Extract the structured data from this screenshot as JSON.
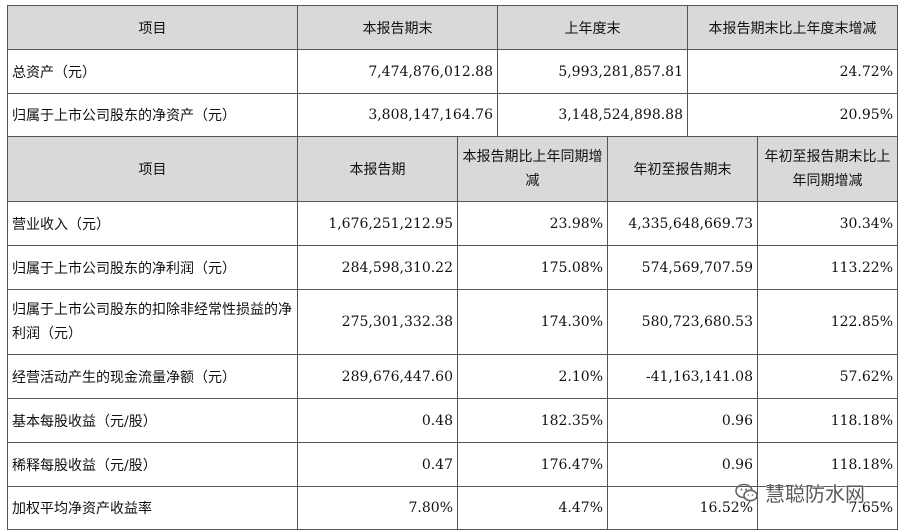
{
  "table1": {
    "headers": [
      "项目",
      "本报告期末",
      "上年度末",
      "本报告期末比上年度末增减"
    ],
    "rows": [
      {
        "label": "总资产（元）",
        "current": "7,474,876,012.88",
        "prior": "5,993,281,857.81",
        "change": "24.72%"
      },
      {
        "label": "归属于上市公司股东的净资产（元）",
        "current": "3,808,147,164.76",
        "prior": "3,148,524,898.88",
        "change": "20.95%"
      }
    ]
  },
  "table2": {
    "headers": [
      "项目",
      "本报告期",
      "本报告期比上年同期增减",
      "年初至报告期末",
      "年初至报告期末比上年同期增减"
    ],
    "rows": [
      {
        "label": "营业收入（元）",
        "period": "1,676,251,212.95",
        "period_change": "23.98%",
        "ytd": "4,335,648,669.73",
        "ytd_change": "30.34%"
      },
      {
        "label": "归属于上市公司股东的净利润（元）",
        "period": "284,598,310.22",
        "period_change": "175.08%",
        "ytd": "574,569,707.59",
        "ytd_change": "113.22%"
      },
      {
        "label": "归属于上市公司股东的扣除非经常性损益的净利润（元）",
        "period": "275,301,332.38",
        "period_change": "174.30%",
        "ytd": "580,723,680.53",
        "ytd_change": "122.85%"
      },
      {
        "label": "经营活动产生的现金流量净额（元）",
        "period": "289,676,447.60",
        "period_change": "2.10%",
        "ytd": "-41,163,141.08",
        "ytd_change": "57.62%"
      },
      {
        "label": "基本每股收益（元/股）",
        "period": "0.48",
        "period_change": "182.35%",
        "ytd": "0.96",
        "ytd_change": "118.18%"
      },
      {
        "label": "稀释每股收益（元/股）",
        "period": "0.47",
        "period_change": "176.47%",
        "ytd": "0.96",
        "ytd_change": "118.18%"
      },
      {
        "label": "加权平均净资产收益率",
        "period": "7.80%",
        "period_change": "4.47%",
        "ytd": "16.52%",
        "ytd_change": "7.65%"
      }
    ]
  },
  "watermark": {
    "text": "慧聪防水网",
    "icon": "wechat-icon"
  }
}
